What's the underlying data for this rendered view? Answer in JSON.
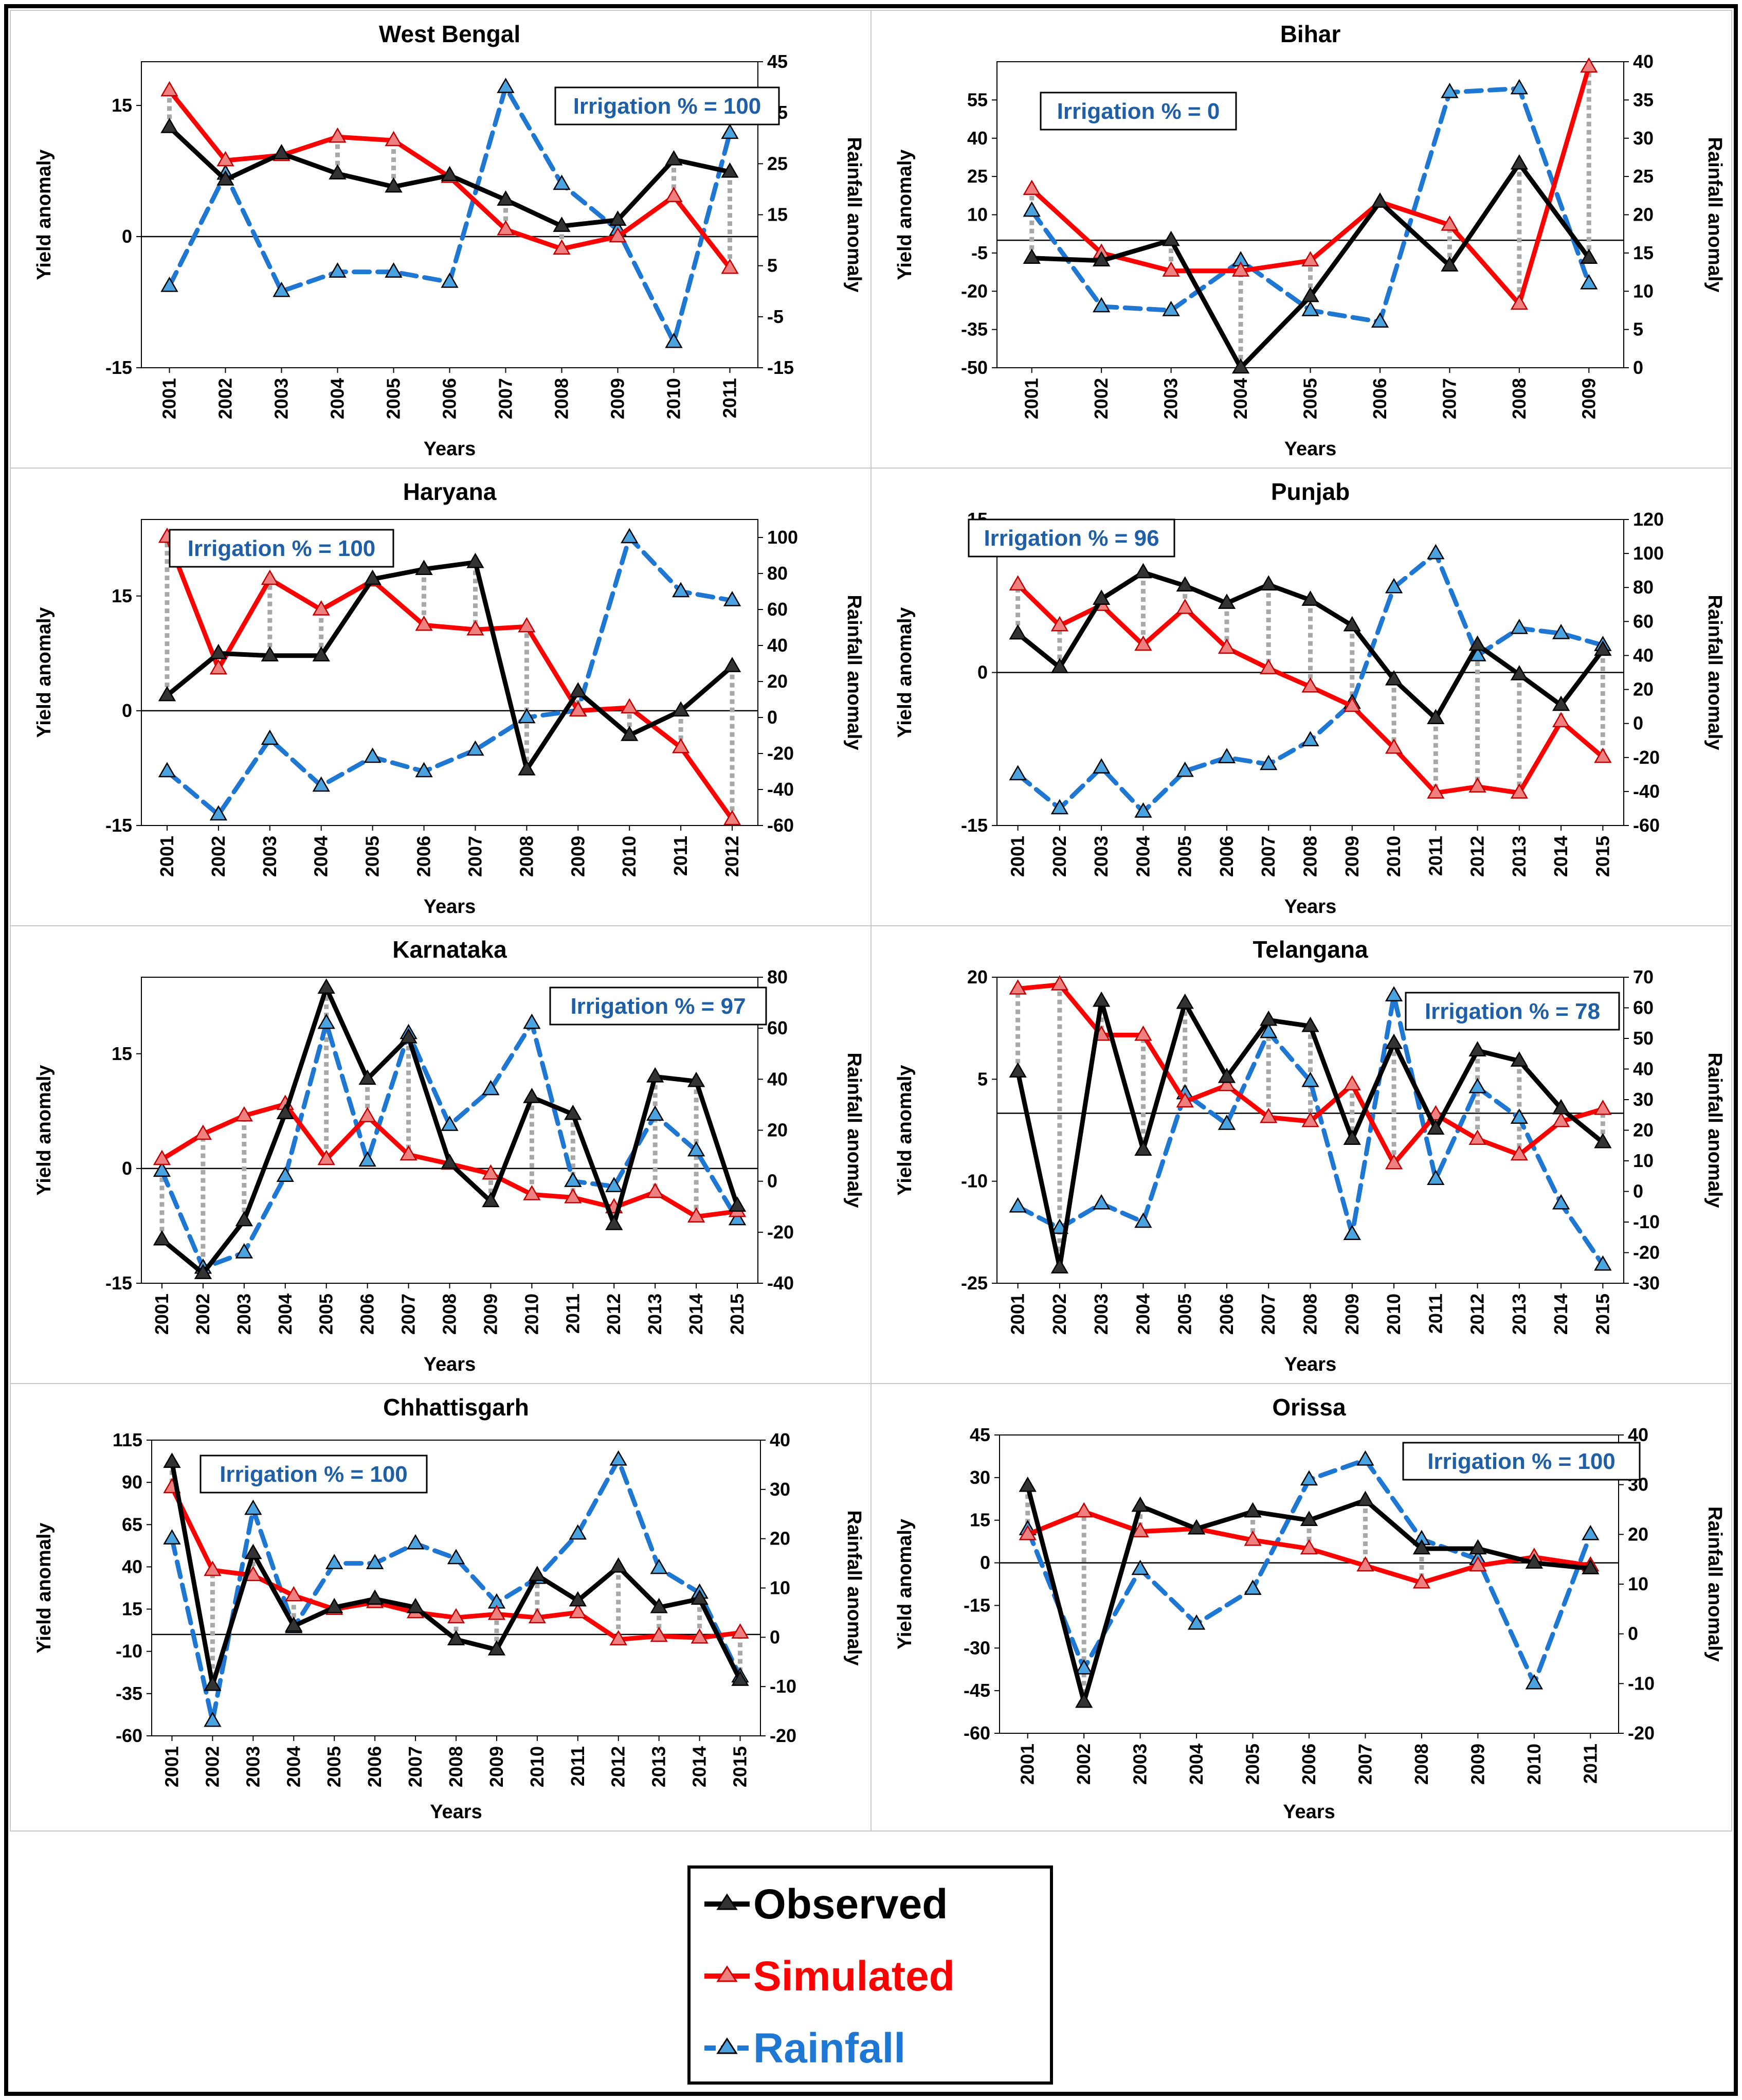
{
  "legend": {
    "items": [
      {
        "name": "Observed",
        "color": "#000000"
      },
      {
        "name": "Simulated",
        "color": "#ff0000"
      },
      {
        "name": "Rainfall",
        "color": "#1f77d4"
      }
    ]
  },
  "chart_data": [
    {
      "type": "line",
      "title": "West Bengal",
      "irrigation_label": "Irrigation % = 100",
      "xlabel": "Years",
      "ylabel": "Yield anomaly",
      "y2label": "Rainfall anomaly",
      "x": [
        "2001",
        "2002",
        "2003",
        "2004",
        "2005",
        "2006",
        "2007",
        "2008",
        "2009",
        "2010",
        "2011"
      ],
      "ylim": [
        -15,
        20
      ],
      "yticks": [
        -15,
        0,
        15
      ],
      "y2lim": [
        -15,
        45
      ],
      "y2ticks": [
        -15,
        -5,
        5,
        15,
        25,
        35,
        45
      ],
      "observed": [
        12.5,
        6.5,
        9.5,
        7.2,
        5.7,
        7,
        4.2,
        1.2,
        1.9,
        8.8,
        7.4
      ],
      "simulated": [
        16.7,
        8.7,
        9.3,
        11.4,
        11,
        6.8,
        0.8,
        -1.4,
        0,
        4.6,
        -3.6
      ],
      "rainfall": [
        1,
        23,
        0,
        3.8,
        3.8,
        1.8,
        40,
        21,
        12,
        -10,
        31
      ]
    },
    {
      "type": "line",
      "title": "Bihar",
      "irrigation_label": "Irrigation % = 0",
      "xlabel": "Years",
      "ylabel": "Yield anomaly",
      "y2label": "Rainfall anomaly",
      "x": [
        "2001",
        "2002",
        "2003",
        "2004",
        "2005",
        "2006",
        "2007",
        "2008",
        "2009"
      ],
      "ylim": [
        -50,
        70
      ],
      "yticks": [
        -50,
        -35,
        -20,
        -5,
        10,
        25,
        40,
        55
      ],
      "y2lim": [
        0,
        40
      ],
      "y2ticks": [
        0,
        5,
        10,
        15,
        20,
        25,
        30,
        35,
        40
      ],
      "observed": [
        -7,
        -8,
        0,
        -50,
        -22,
        15,
        -10,
        30,
        -7
      ],
      "simulated": [
        20,
        -5,
        -12,
        -12,
        -8,
        15,
        6,
        -25,
        68
      ],
      "rainfall": [
        20.5,
        8,
        7.5,
        14,
        7.5,
        6,
        36,
        36.5,
        11
      ]
    },
    {
      "type": "line",
      "title": "Haryana",
      "irrigation_label": "Irrigation % = 100",
      "xlabel": "Years",
      "ylabel": "Yield anomaly",
      "y2label": "Rainfall anomaly",
      "x": [
        "2001",
        "2002",
        "2003",
        "2004",
        "2005",
        "2006",
        "2007",
        "2008",
        "2009",
        "2010",
        "2011",
        "2012"
      ],
      "ylim": [
        -15,
        25
      ],
      "yticks": [
        -15,
        0,
        15
      ],
      "y2lim": [
        -60,
        110
      ],
      "y2ticks": [
        -60,
        -40,
        -20,
        0,
        20,
        40,
        60,
        80,
        100
      ],
      "observed": [
        2,
        7.5,
        7.2,
        7.2,
        17.2,
        18.5,
        19.4,
        -7.7,
        2.5,
        -3.2,
        0,
        5.8
      ],
      "simulated": [
        22.7,
        5.5,
        17.2,
        13.2,
        17,
        11.2,
        10.6,
        11,
        0,
        0.4,
        -4.8,
        -14.2
      ],
      "rainfall": [
        -30,
        -54,
        -12,
        -38,
        -22,
        -30,
        -18,
        0,
        4,
        100,
        70,
        65
      ]
    },
    {
      "type": "line",
      "title": "Punjab",
      "irrigation_label": "Irrigation % = 96",
      "xlabel": "Years",
      "ylabel": "Yield anomaly",
      "y2label": "Rainfall anomaly",
      "x": [
        "2001",
        "2002",
        "2003",
        "2004",
        "2005",
        "2006",
        "2007",
        "2008",
        "2009",
        "2010",
        "2011",
        "2012",
        "2013",
        "2014",
        "2015"
      ],
      "ylim": [
        -15,
        15
      ],
      "yticks": [
        -15,
        0,
        15
      ],
      "y2lim": [
        -60,
        120
      ],
      "y2ticks": [
        -60,
        -40,
        -20,
        0,
        20,
        40,
        60,
        80,
        100,
        120
      ],
      "observed": [
        3.8,
        0.5,
        7.2,
        9.8,
        8.5,
        6.8,
        8.6,
        7.1,
        4.6,
        -0.7,
        -4.5,
        2.7,
        -0.2,
        -3.2,
        2.2
      ],
      "simulated": [
        8.6,
        4.6,
        6.6,
        2.7,
        6.3,
        2.4,
        0.4,
        -1.4,
        -3.3,
        -7.4,
        -11.8,
        -11.2,
        -11.8,
        -4.8,
        -8.3
      ],
      "rainfall": [
        -30,
        -50,
        -26,
        -52,
        -28,
        -20,
        -24,
        -10,
        12,
        80,
        100,
        40,
        56,
        53,
        46
      ]
    },
    {
      "type": "line",
      "title": "Karnataka",
      "irrigation_label": "Irrigation % = 97",
      "xlabel": "Years",
      "ylabel": "Yield anomaly",
      "y2label": "Rainfall anomaly",
      "x": [
        "2001",
        "2002",
        "2003",
        "2004",
        "2005",
        "2006",
        "2007",
        "2008",
        "2009",
        "2010",
        "2011",
        "2012",
        "2013",
        "2014",
        "2015"
      ],
      "ylim": [
        -15,
        25
      ],
      "yticks": [
        -15,
        0,
        15
      ],
      "y2lim": [
        -40,
        80
      ],
      "y2ticks": [
        -40,
        -20,
        0,
        20,
        40,
        60,
        80
      ],
      "observed": [
        -9.3,
        -13.7,
        -6.8,
        7.2,
        23.6,
        11.7,
        17.1,
        0.7,
        -4.3,
        9.3,
        7.1,
        -7.3,
        12,
        11.4,
        -4.9
      ],
      "simulated": [
        1.2,
        4.5,
        6.9,
        8.4,
        1.2,
        6.8,
        1.8,
        0.6,
        -0.7,
        -3.4,
        -3.8,
        -5.1,
        -3.1,
        -6.3,
        -5.6
      ],
      "rainfall": [
        4,
        -34,
        -28,
        2,
        62,
        8,
        58,
        22,
        36,
        62,
        0,
        -2,
        26,
        12,
        -15
      ]
    },
    {
      "type": "line",
      "title": "Telangana",
      "irrigation_label": "Irrigation % = 78",
      "xlabel": "Years",
      "ylabel": "Yield anomaly",
      "y2label": "Rainfall anomaly",
      "x": [
        "2001",
        "2002",
        "2003",
        "2004",
        "2005",
        "2006",
        "2007",
        "2008",
        "2009",
        "2010",
        "2011",
        "2012",
        "2013",
        "2014",
        "2015"
      ],
      "ylim": [
        -25,
        20
      ],
      "yticks": [
        -25,
        -10,
        5,
        20
      ],
      "y2lim": [
        -30,
        70
      ],
      "y2ticks": [
        -30,
        -20,
        -10,
        0,
        10,
        20,
        30,
        40,
        50,
        60,
        70
      ],
      "observed": [
        6.1,
        -22.7,
        16.5,
        -5.4,
        16.2,
        5.3,
        13.7,
        12.8,
        -3.8,
        10.3,
        -2.3,
        9.2,
        7.7,
        0.7,
        -4.3
      ],
      "simulated": [
        18.3,
        18.9,
        11.5,
        11.5,
        1.7,
        4.1,
        -0.6,
        -1.2,
        4.2,
        -7.4,
        -0.2,
        -3.8,
        -6.1,
        -1.2,
        0.6
      ],
      "rainfall": [
        -5,
        -12,
        -4,
        -10,
        32,
        22,
        52,
        36,
        -14,
        64,
        4,
        34,
        24,
        -4,
        -24
      ]
    },
    {
      "type": "line",
      "title": "Chhattisgarh",
      "irrigation_label": "Irrigation % = 100",
      "xlabel": "Years",
      "ylabel": "Yield anomaly",
      "y2label": "Rainfall anomaly",
      "x": [
        "2001",
        "2002",
        "2003",
        "2004",
        "2005",
        "2006",
        "2007",
        "2008",
        "2009",
        "2010",
        "2011",
        "2012",
        "2013",
        "2014",
        "2015"
      ],
      "ylim": [
        -60,
        115
      ],
      "yticks": [
        -60,
        -35,
        -10,
        15,
        40,
        65,
        90,
        115
      ],
      "y2lim": [
        -20,
        40
      ],
      "y2ticks": [
        -20,
        -10,
        0,
        10,
        20,
        30,
        40
      ],
      "observed": [
        102,
        -30,
        48,
        5,
        16,
        21,
        16,
        -3,
        -9,
        35,
        20,
        40,
        16,
        21,
        -27
      ],
      "simulated": [
        87,
        38,
        35,
        23,
        15,
        19,
        13,
        10,
        12,
        10,
        13,
        -3,
        -1,
        -2,
        1
      ],
      "rainfall": [
        20,
        -17,
        26,
        2,
        15,
        15,
        19,
        16,
        7,
        12,
        21,
        36,
        14,
        9,
        -8
      ]
    },
    {
      "type": "line",
      "title": "Orissa",
      "irrigation_label": "Irrigation % = 100",
      "xlabel": "Years",
      "ylabel": "Yield anomaly",
      "y2label": "Rainfall anomaly",
      "x": [
        "2001",
        "2002",
        "2003",
        "2004",
        "2005",
        "2006",
        "2007",
        "2008",
        "2009",
        "2010",
        "2011"
      ],
      "ylim": [
        -60,
        45
      ],
      "yticks": [
        -60,
        -45,
        -30,
        -15,
        0,
        15,
        30,
        45
      ],
      "y2lim": [
        -20,
        40
      ],
      "y2ticks": [
        -20,
        -10,
        0,
        10,
        20,
        30,
        40
      ],
      "observed": [
        27,
        -49,
        20,
        12,
        18,
        15,
        22,
        5,
        5,
        0,
        -2
      ],
      "simulated": [
        10,
        18,
        11,
        12,
        8,
        5,
        -1,
        -7,
        -1,
        2,
        -1
      ],
      "rainfall": [
        21,
        -7,
        13,
        2,
        9,
        31,
        35,
        19,
        15,
        -10,
        20
      ]
    }
  ]
}
